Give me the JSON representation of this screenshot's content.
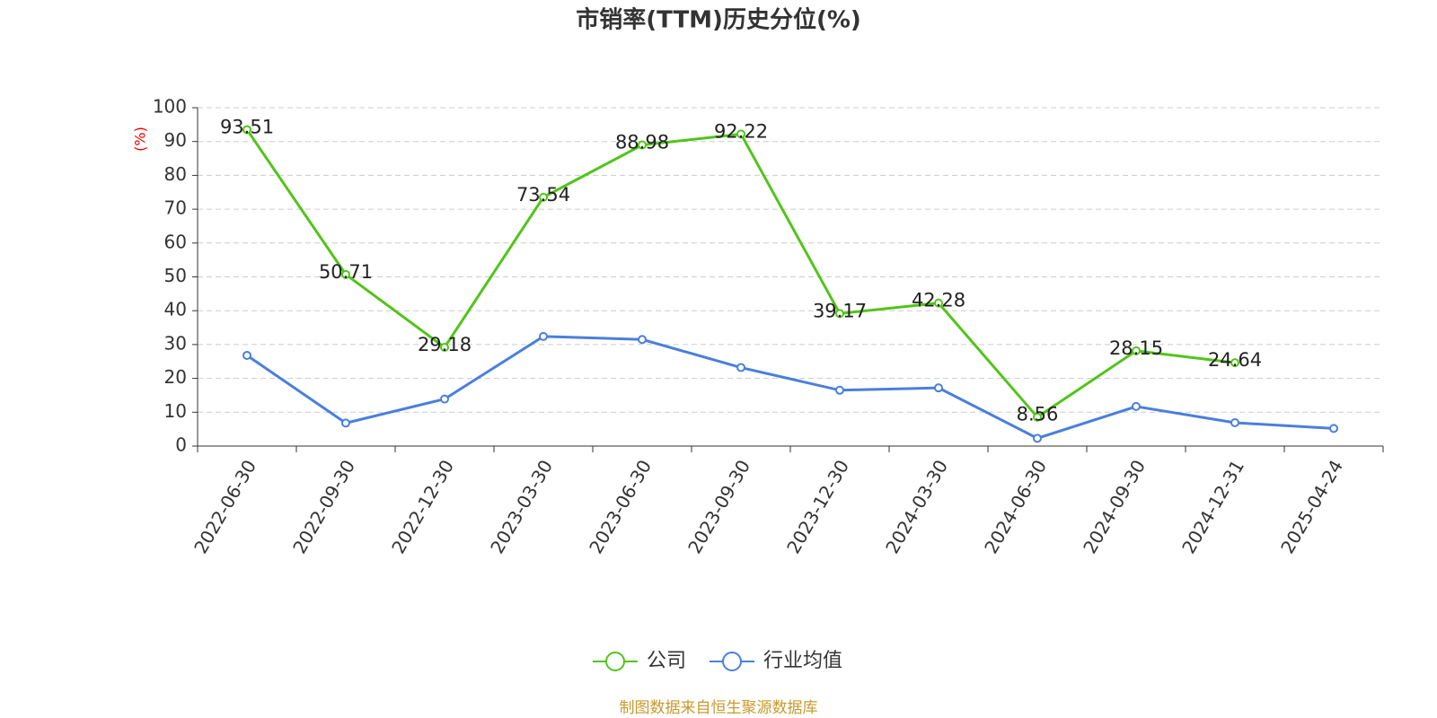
{
  "chart_data": {
    "type": "line",
    "title": "市销率(TTM)历史分位(%)",
    "y_label": "(%)",
    "categories": [
      "2022-06-30",
      "2022-09-30",
      "2022-12-30",
      "2023-03-30",
      "2023-06-30",
      "2023-09-30",
      "2023-12-30",
      "2024-03-30",
      "2024-06-30",
      "2024-09-30",
      "2024-12-31",
      "2025-04-24"
    ],
    "series": [
      {
        "name": "公司",
        "color": "#52c41a",
        "values": [
          93.51,
          50.71,
          29.18,
          73.54,
          88.98,
          92.22,
          39.17,
          42.28,
          8.56,
          28.15,
          24.64,
          null
        ],
        "data_labels": true
      },
      {
        "name": "行业均值",
        "color": "#4a7fdc",
        "values": [
          26.8,
          6.8,
          13.9,
          32.4,
          31.5,
          23.2,
          16.5,
          17.2,
          2.3,
          11.7,
          6.9,
          5.2
        ],
        "data_labels": false
      }
    ],
    "ylim": [
      0,
      100
    ],
    "yticks": [
      0,
      10,
      20,
      30,
      40,
      50,
      60,
      70,
      80,
      90,
      100
    ],
    "grid": true,
    "source": "制图数据来自恒生聚源数据库"
  }
}
